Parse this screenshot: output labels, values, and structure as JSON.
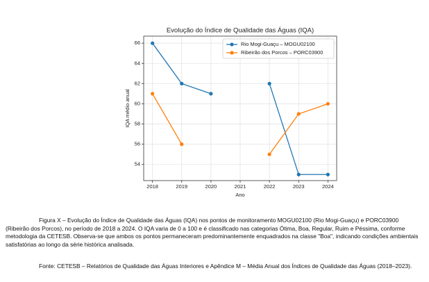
{
  "chart_data": {
    "type": "line",
    "title": "Evolução do Índice de Qualidade das Águas (IQA)",
    "x_label": "Ano",
    "y_label": "IQA médio anual",
    "x": [
      2018,
      2019,
      2020,
      2021,
      2022,
      2023,
      2024
    ],
    "series": [
      {
        "name": "Rio Mogi-Guaçu – MOGU02100",
        "color": "#1f77b4",
        "values": [
          66,
          62,
          61,
          null,
          62,
          53,
          53
        ]
      },
      {
        "name": "Ribeirão dos Porcos – PORC03900",
        "color": "#ff7f0e",
        "values": [
          61,
          56,
          null,
          null,
          55,
          59,
          60
        ]
      }
    ],
    "xlim": [
      2017.7,
      2024.3
    ],
    "xticks": [
      2018,
      2019,
      2020,
      2021,
      2022,
      2023,
      2024
    ],
    "ylim": [
      52.4,
      66.7
    ],
    "yticks": [
      54,
      56,
      58,
      60,
      62,
      64,
      66
    ],
    "grid": true,
    "legend": "upper right"
  },
  "document": {
    "caption": "Figura X – Evolução do Índice de Qualidade das Águas (IQA) nos pontos de monitoramento MOGU02100 (Rio Mogi-Guaçu) e PORC03900 (Ribeirão dos Porcos), no período de 2018 a 2024. O IQA varia de 0 a 100 e é classificado nas categorias Ótima, Boa, Regular, Ruim e Péssima, conforme metodologia da CETESB. Observa-se que ambos os pontos permaneceram predominantemente enquadrados na classe \"Boa\", indicando condições ambientais satisfatórias ao longo da série histórica analisada.",
    "source": "Fonte: CETESB – Relatórios de Qualidade das Águas Interiores e Apêndice M – Média Anual dos Índices de Qualidade das Águas (2018–2023)."
  }
}
